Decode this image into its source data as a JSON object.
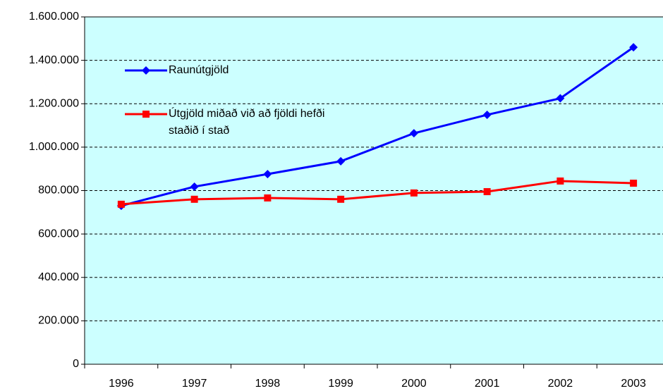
{
  "chart_data": {
    "type": "line",
    "categories": [
      "1996",
      "1997",
      "1998",
      "1999",
      "2000",
      "2001",
      "2002",
      "2003"
    ],
    "series": [
      {
        "name": "Raunútgjöld",
        "color": "#0000ff",
        "marker": "diamond",
        "values": [
          730000,
          818000,
          876000,
          935000,
          1064000,
          1149000,
          1225000,
          1460000
        ]
      },
      {
        "name": "Útgjöld miðað við að fjöldi hefði staðið í stað",
        "color": "#ff0000",
        "marker": "square",
        "values": [
          737000,
          760000,
          766000,
          760000,
          789000,
          795000,
          844000,
          834000
        ]
      }
    ],
    "ylim": [
      0,
      1600000
    ],
    "yticks": [
      0,
      {
        "value": 200000,
        "label": "200.000"
      },
      {
        "value": 400000,
        "label": "400.000"
      },
      {
        "value": 600000,
        "label": "600.000"
      },
      {
        "value": 800000,
        "label": "800.000"
      },
      {
        "value": 1000000,
        "label": "1.000.000"
      },
      {
        "value": 1200000,
        "label": "1.200.000"
      },
      {
        "value": 1400000,
        "label": "1.400.000"
      },
      {
        "value": 1600000,
        "label": "1.600.000"
      }
    ],
    "grid": true,
    "background": "#ccffff",
    "legend": "upper left"
  }
}
